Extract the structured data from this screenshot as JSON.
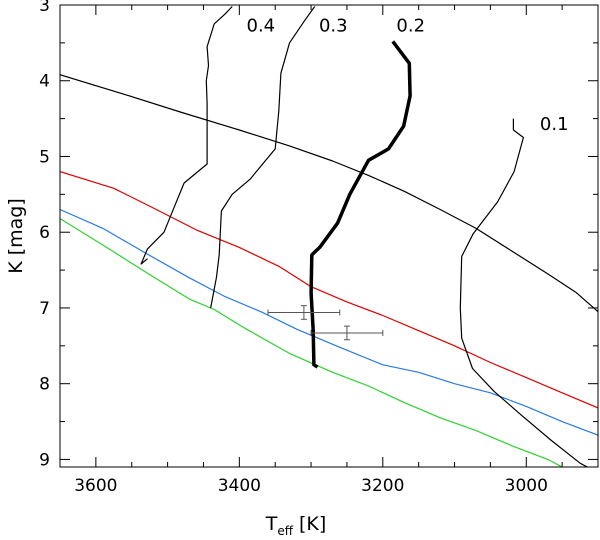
{
  "chart_data": {
    "type": "line",
    "title": "",
    "xlabel": "T",
    "xlabel_sub": "eff",
    "xlabel_unit": "[K]",
    "ylabel": "K [mag]",
    "xlim": [
      3650,
      2900
    ],
    "ylim": [
      3,
      9.1
    ],
    "xticks": [
      3600,
      3400,
      3200,
      3000
    ],
    "xtick_labels": [
      "3600",
      "3400",
      "3200",
      "3000"
    ],
    "yticks": [
      3,
      4,
      5,
      6,
      7,
      8,
      9
    ],
    "ytick_labels": [
      "3",
      "4",
      "5",
      "6",
      "7",
      "8",
      "9"
    ],
    "grid": false,
    "isochrones": [
      {
        "color": "#000000",
        "points": [
          [
            3650,
            3.92
          ],
          [
            3560,
            4.18
          ],
          [
            3480,
            4.42
          ],
          [
            3400,
            4.65
          ],
          [
            3330,
            4.86
          ],
          [
            3270,
            5.06
          ],
          [
            3220,
            5.25
          ],
          [
            3170,
            5.46
          ],
          [
            3120,
            5.7
          ],
          [
            3070,
            5.95
          ],
          [
            3020,
            6.25
          ],
          [
            2970,
            6.55
          ],
          [
            2930,
            6.8
          ],
          [
            2900,
            7.05
          ]
        ]
      },
      {
        "color": "#e00000",
        "points": [
          [
            3650,
            5.2
          ],
          [
            3575,
            5.42
          ],
          [
            3520,
            5.68
          ],
          [
            3460,
            5.97
          ],
          [
            3400,
            6.2
          ],
          [
            3345,
            6.45
          ],
          [
            3300,
            6.72
          ],
          [
            3250,
            6.92
          ],
          [
            3200,
            7.1
          ],
          [
            3150,
            7.3
          ],
          [
            3100,
            7.5
          ],
          [
            3050,
            7.72
          ],
          [
            3000,
            7.92
          ],
          [
            2950,
            8.12
          ],
          [
            2900,
            8.32
          ]
        ]
      },
      {
        "color": "#2a7ae2",
        "points": [
          [
            3650,
            5.7
          ],
          [
            3590,
            5.95
          ],
          [
            3530,
            6.28
          ],
          [
            3470,
            6.6
          ],
          [
            3420,
            6.85
          ],
          [
            3370,
            7.05
          ],
          [
            3320,
            7.28
          ],
          [
            3260,
            7.52
          ],
          [
            3200,
            7.75
          ],
          [
            3150,
            7.85
          ],
          [
            3100,
            8.0
          ],
          [
            3050,
            8.12
          ],
          [
            3000,
            8.3
          ],
          [
            2950,
            8.5
          ],
          [
            2900,
            8.68
          ]
        ]
      },
      {
        "color": "#2ed12e",
        "points": [
          [
            3650,
            5.82
          ],
          [
            3585,
            6.2
          ],
          [
            3525,
            6.56
          ],
          [
            3470,
            6.88
          ],
          [
            3435,
            7.02
          ],
          [
            3390,
            7.28
          ],
          [
            3330,
            7.6
          ],
          [
            3270,
            7.85
          ],
          [
            3220,
            8.03
          ],
          [
            3170,
            8.25
          ],
          [
            3120,
            8.45
          ],
          [
            3070,
            8.62
          ],
          [
            3020,
            8.82
          ],
          [
            2970,
            9.0
          ],
          [
            2950,
            9.1
          ]
        ]
      }
    ],
    "tracks": [
      {
        "label": "0.4",
        "width": 1.2,
        "label_at": [
          3390,
          3.35
        ],
        "points": [
          [
            3410,
            3.02
          ],
          [
            3420,
            3.12
          ],
          [
            3435,
            3.25
          ],
          [
            3445,
            3.55
          ],
          [
            3443,
            3.8
          ],
          [
            3446,
            4.0
          ],
          [
            3445,
            4.3
          ],
          [
            3445,
            4.8
          ],
          [
            3445,
            5.1
          ],
          [
            3477,
            5.35
          ],
          [
            3490,
            5.65
          ],
          [
            3505,
            6.0
          ],
          [
            3528,
            6.22
          ],
          [
            3537,
            6.42
          ],
          [
            3528,
            6.35
          ]
        ]
      },
      {
        "label": "0.3",
        "width": 1.2,
        "label_at": [
          3289,
          3.35
        ],
        "points": [
          [
            3295,
            3.02
          ],
          [
            3310,
            3.22
          ],
          [
            3330,
            3.5
          ],
          [
            3342,
            3.9
          ],
          [
            3345,
            4.4
          ],
          [
            3350,
            4.9
          ],
          [
            3385,
            5.3
          ],
          [
            3410,
            5.5
          ],
          [
            3425,
            5.72
          ],
          [
            3428,
            6.3
          ],
          [
            3432,
            6.6
          ],
          [
            3438,
            6.9
          ],
          [
            3440,
            7.0
          ]
        ]
      },
      {
        "label": "0.2",
        "width": 3.5,
        "label_at": [
          3181,
          3.35
        ],
        "points": [
          [
            3186,
            3.48
          ],
          [
            3163,
            3.77
          ],
          [
            3162,
            4.2
          ],
          [
            3171,
            4.6
          ],
          [
            3192,
            4.9
          ],
          [
            3220,
            5.05
          ],
          [
            3246,
            5.5
          ],
          [
            3263,
            5.88
          ],
          [
            3288,
            6.2
          ],
          [
            3299,
            6.3
          ],
          [
            3300,
            6.8
          ],
          [
            3297,
            7.3
          ],
          [
            3296,
            7.75
          ],
          [
            3291,
            7.78
          ]
        ]
      },
      {
        "label": "0.1",
        "width": 1.2,
        "label_at": [
          2981,
          4.65
        ],
        "points": [
          [
            3018,
            4.5
          ],
          [
            3018,
            4.65
          ],
          [
            3004,
            4.75
          ],
          [
            3017,
            5.2
          ],
          [
            3040,
            5.6
          ],
          [
            3074,
            6.02
          ],
          [
            3090,
            6.32
          ],
          [
            3092,
            7.0
          ],
          [
            3090,
            7.4
          ],
          [
            3075,
            7.8
          ],
          [
            3045,
            8.1
          ],
          [
            3005,
            8.43
          ],
          [
            2965,
            8.75
          ],
          [
            2925,
            9.05
          ],
          [
            2915,
            9.1
          ]
        ]
      }
    ],
    "data_points": [
      {
        "x": 3310,
        "y": 7.06,
        "xerr": 50,
        "yerr": 0.09
      },
      {
        "x": 3250,
        "y": 7.33,
        "xerr": 50,
        "yerr": 0.09
      }
    ]
  }
}
